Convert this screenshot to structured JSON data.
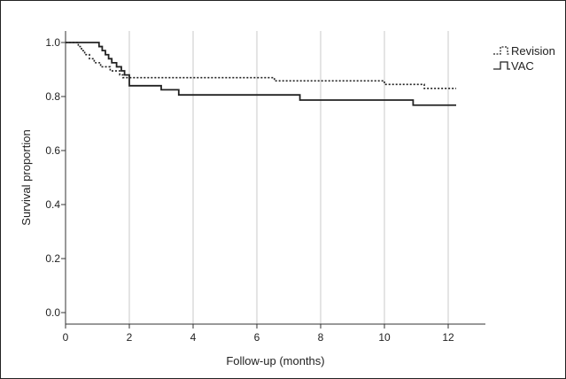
{
  "chart_data": {
    "type": "line",
    "subtype": "kaplan-meier step",
    "title": "",
    "xlabel": "Follow-up (months)",
    "ylabel": "Survival proportion",
    "xlim": [
      0,
      13
    ],
    "ylim": [
      0,
      1.05
    ],
    "x_ticks": [
      0,
      2,
      4,
      6,
      8,
      10,
      12
    ],
    "y_ticks": [
      0.0,
      0.2,
      0.4,
      0.6,
      0.8,
      1.0
    ],
    "x_tick_labels": [
      "0",
      "2",
      "4",
      "6",
      "8",
      "10",
      "12"
    ],
    "y_tick_labels": [
      "0.0",
      "0.2",
      "0.4",
      "0.6",
      "0.8",
      "1.0"
    ],
    "grid": "vertical lines at x ticks",
    "legend_position": "top-right",
    "series": [
      {
        "name": "Revision",
        "style": "dotted",
        "color": "#222222",
        "x": [
          0,
          0.3,
          0.4,
          0.5,
          0.6,
          0.75,
          0.9,
          1.1,
          1.4,
          1.7,
          1.8,
          6.55,
          10.0,
          11.25,
          12.25
        ],
        "y": [
          1.0,
          1.0,
          0.985,
          0.97,
          0.955,
          0.94,
          0.925,
          0.91,
          0.895,
          0.88,
          0.87,
          0.858,
          0.845,
          0.83,
          0.83
        ]
      },
      {
        "name": "VAC",
        "style": "solid",
        "color": "#222222",
        "x": [
          0,
          0.95,
          1.05,
          1.15,
          1.25,
          1.35,
          1.45,
          1.6,
          1.75,
          1.85,
          2.0,
          3.0,
          3.55,
          7.35,
          10.9,
          12.25
        ],
        "y": [
          1.0,
          1.0,
          0.985,
          0.97,
          0.955,
          0.94,
          0.925,
          0.91,
          0.895,
          0.88,
          0.84,
          0.825,
          0.806,
          0.787,
          0.768,
          0.768
        ]
      }
    ]
  }
}
